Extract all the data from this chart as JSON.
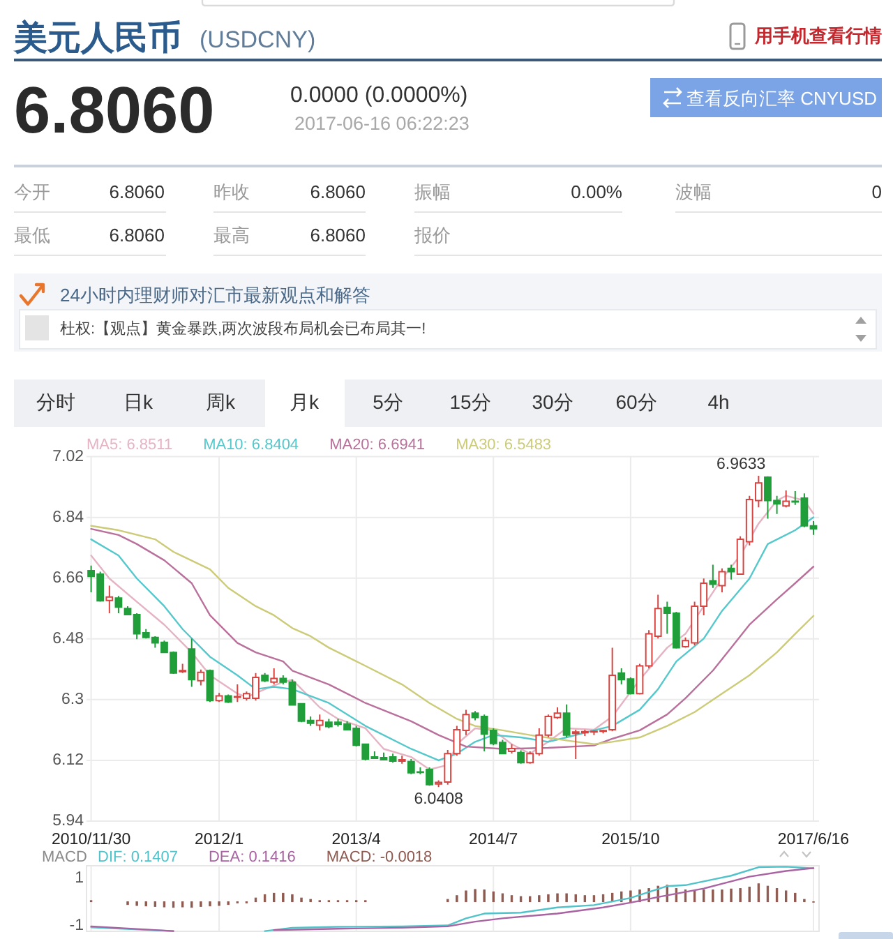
{
  "chart_data": [
    {
      "type": "other",
      "title": "美元人民币",
      "subtitle": "(USDCNY)",
      "annotations": [
        "用手机查看行情",
        "6.8060",
        "0.0000 (0.0000%)",
        "2017-06-16 06:22:23",
        "查看反向汇率 CNYUSD",
        "今开",
        "6.8060",
        "昨收",
        "6.8060",
        "振幅",
        "0.00%",
        "波幅",
        "0",
        "最低",
        "6.8060",
        "最高",
        "6.8060",
        "报价",
        "24小时内理财师对汇市最新观点和解答",
        "杜权:【观点】黄金暴跌,两次波段布局机会已布局其一!",
        "分时",
        "日k",
        "周k",
        "月k",
        "5分",
        "15分",
        "30分",
        "60分",
        "4h"
      ]
    },
    {
      "type": "candlestick",
      "x": [
        "2010-11",
        "2010-12",
        "2011-01",
        "2011-02",
        "2011-03",
        "2011-04",
        "2011-05",
        "2011-06",
        "2011-07",
        "2011-08",
        "2011-09",
        "2011-10",
        "2011-11",
        "2011-12",
        "2012-01",
        "2012-02",
        "2012-03",
        "2012-04",
        "2012-05",
        "2012-06",
        "2012-07",
        "2012-08",
        "2012-09",
        "2012-10",
        "2012-11",
        "2012-12",
        "2013-01",
        "2013-02",
        "2013-03",
        "2013-04",
        "2013-05",
        "2013-06",
        "2013-07",
        "2013-08",
        "2013-09",
        "2013-10",
        "2013-11",
        "2013-12",
        "2014-01",
        "2014-02",
        "2014-03",
        "2014-04",
        "2014-05",
        "2014-06",
        "2014-07",
        "2014-08",
        "2014-09",
        "2014-10",
        "2014-11",
        "2014-12",
        "2015-01",
        "2015-02",
        "2015-03",
        "2015-04",
        "2015-05",
        "2015-06",
        "2015-07",
        "2015-08",
        "2015-09",
        "2015-10",
        "2015-11",
        "2015-12",
        "2016-01",
        "2016-02",
        "2016-03",
        "2016-04",
        "2016-05",
        "2016-06",
        "2016-07",
        "2016-08",
        "2016-09",
        "2016-10",
        "2016-11",
        "2016-12",
        "2017-01",
        "2017-02",
        "2017-03",
        "2017-04",
        "2017-05",
        "2017-06"
      ],
      "ohlc": [
        [
          6.682,
          6.697,
          6.618,
          6.665
        ],
        [
          6.672,
          6.679,
          6.59,
          6.593
        ],
        [
          6.594,
          6.638,
          6.556,
          6.604
        ],
        [
          6.601,
          6.607,
          6.556,
          6.574
        ],
        [
          6.57,
          6.577,
          6.55,
          6.552
        ],
        [
          6.552,
          6.556,
          6.479,
          6.495
        ],
        [
          6.498,
          6.509,
          6.481,
          6.484
        ],
        [
          6.484,
          6.488,
          6.454,
          6.468
        ],
        [
          6.47,
          6.475,
          6.438,
          6.44
        ],
        [
          6.44,
          6.443,
          6.376,
          6.379
        ],
        [
          6.383,
          6.406,
          6.379,
          6.386
        ],
        [
          6.45,
          6.481,
          6.338,
          6.359
        ],
        [
          6.356,
          6.389,
          6.342,
          6.381
        ],
        [
          6.386,
          6.389,
          6.293,
          6.297
        ],
        [
          6.297,
          6.32,
          6.293,
          6.311
        ],
        [
          6.311,
          6.315,
          6.29,
          6.293
        ],
        [
          6.307,
          6.345,
          6.293,
          6.309
        ],
        [
          6.304,
          6.324,
          6.297,
          6.318
        ],
        [
          6.304,
          6.379,
          6.297,
          6.366
        ],
        [
          6.372,
          6.379,
          6.352,
          6.356
        ],
        [
          6.352,
          6.393,
          6.345,
          6.363
        ],
        [
          6.363,
          6.372,
          6.345,
          6.352
        ],
        [
          6.352,
          6.359,
          6.284,
          6.284
        ],
        [
          6.288,
          6.29,
          6.233,
          6.236
        ],
        [
          6.238,
          6.25,
          6.222,
          6.23
        ],
        [
          6.224,
          6.256,
          6.209,
          6.238
        ],
        [
          6.233,
          6.243,
          6.215,
          6.22
        ],
        [
          6.233,
          6.243,
          6.22,
          6.227
        ],
        [
          6.228,
          6.236,
          6.209,
          6.211
        ],
        [
          6.215,
          6.222,
          6.161,
          6.165
        ],
        [
          6.168,
          6.17,
          6.12,
          6.124
        ],
        [
          6.13,
          6.147,
          6.124,
          6.126
        ],
        [
          6.128,
          6.143,
          6.12,
          6.122
        ],
        [
          6.13,
          6.14,
          6.113,
          6.118
        ],
        [
          6.118,
          6.134,
          6.11,
          6.122
        ],
        [
          6.116,
          6.124,
          6.079,
          6.083
        ],
        [
          6.086,
          6.099,
          6.079,
          6.084
        ],
        [
          6.093,
          6.099,
          6.045,
          6.048
        ],
        [
          6.05,
          6.061,
          6.0408,
          6.055
        ],
        [
          6.056,
          6.151,
          6.048,
          6.14
        ],
        [
          6.14,
          6.222,
          6.134,
          6.211
        ],
        [
          6.209,
          6.27,
          6.195,
          6.256
        ],
        [
          6.26,
          6.266,
          6.239,
          6.247
        ],
        [
          6.25,
          6.256,
          6.147,
          6.198
        ],
        [
          6.209,
          6.215,
          6.165,
          6.17
        ],
        [
          6.173,
          6.181,
          6.138,
          6.14
        ],
        [
          6.147,
          6.168,
          6.14,
          6.155
        ],
        [
          6.143,
          6.15,
          6.11,
          6.113
        ],
        [
          6.113,
          6.147,
          6.11,
          6.14
        ],
        [
          6.14,
          6.215,
          6.134,
          6.195
        ],
        [
          6.195,
          6.256,
          6.188,
          6.25
        ],
        [
          6.247,
          6.277,
          6.243,
          6.26
        ],
        [
          6.26,
          6.286,
          6.188,
          6.195
        ],
        [
          6.2,
          6.211,
          6.124,
          6.204
        ],
        [
          6.202,
          6.211,
          6.192,
          6.205
        ],
        [
          6.204,
          6.209,
          6.195,
          6.206
        ],
        [
          6.206,
          6.211,
          6.2,
          6.208
        ],
        [
          6.211,
          6.454,
          6.206,
          6.372
        ],
        [
          6.379,
          6.393,
          6.345,
          6.359
        ],
        [
          6.361,
          6.366,
          6.315,
          6.318
        ],
        [
          6.318,
          6.406,
          6.315,
          6.4
        ],
        [
          6.4,
          6.506,
          6.393,
          6.495
        ],
        [
          6.488,
          6.611,
          6.481,
          6.57
        ],
        [
          6.573,
          6.59,
          6.495,
          6.556
        ],
        [
          6.556,
          6.56,
          6.451,
          6.454
        ],
        [
          6.457,
          6.484,
          6.454,
          6.475
        ],
        [
          6.468,
          6.59,
          6.461,
          6.577
        ],
        [
          6.577,
          6.659,
          6.55,
          6.645
        ],
        [
          6.652,
          6.7,
          6.631,
          6.642
        ],
        [
          6.638,
          6.689,
          6.618,
          6.679
        ],
        [
          6.689,
          6.7,
          6.656,
          6.679
        ],
        [
          6.672,
          6.784,
          6.67,
          6.775
        ],
        [
          6.768,
          6.904,
          6.757,
          6.893
        ],
        [
          6.89,
          6.9633,
          6.87,
          6.942
        ],
        [
          6.959,
          6.962,
          6.836,
          6.89
        ],
        [
          6.89,
          6.904,
          6.85,
          6.88
        ],
        [
          6.874,
          6.92,
          6.87,
          6.888
        ],
        [
          6.888,
          6.918,
          6.877,
          6.886
        ],
        [
          6.897,
          6.911,
          6.811,
          6.815
        ],
        [
          6.815,
          6.829,
          6.788,
          6.806
        ]
      ],
      "colors": [
        "#1f9e3a",
        "#1f9e3a",
        "#d64541",
        "#1f9e3a",
        "#1f9e3a",
        "#1f9e3a",
        "#1f9e3a",
        "#1f9e3a",
        "#1f9e3a",
        "#1f9e3a",
        "#d64541",
        "#1f9e3a",
        "#d64541",
        "#1f9e3a",
        "#d64541",
        "#1f9e3a",
        "#d64541",
        "#d64541",
        "#d64541",
        "#1f9e3a",
        "#d64541",
        "#1f9e3a",
        "#1f9e3a",
        "#1f9e3a",
        "#1f9e3a",
        "#d64541",
        "#1f9e3a",
        "#1f9e3a",
        "#1f9e3a",
        "#1f9e3a",
        "#1f9e3a",
        "#1f9e3a",
        "#1f9e3a",
        "#1f9e3a",
        "#d64541",
        "#1f9e3a",
        "#1f9e3a",
        "#1f9e3a",
        "#d64541",
        "#d64541",
        "#d64541",
        "#d64541",
        "#1f9e3a",
        "#1f9e3a",
        "#1f9e3a",
        "#1f9e3a",
        "#d64541",
        "#1f9e3a",
        "#d64541",
        "#d64541",
        "#d64541",
        "#d64541",
        "#1f9e3a",
        "#d64541",
        "#d64541",
        "#d64541",
        "#d64541",
        "#d64541",
        "#1f9e3a",
        "#1f9e3a",
        "#d64541",
        "#d64541",
        "#d64541",
        "#1f9e3a",
        "#1f9e3a",
        "#d64541",
        "#d64541",
        "#d64541",
        "#1f9e3a",
        "#d64541",
        "#1f9e3a",
        "#d64541",
        "#d64541",
        "#d64541",
        "#1f9e3a",
        "#1f9e3a",
        "#d64541",
        "#1f9e3a",
        "#1f9e3a",
        "#1f9e3a"
      ],
      "series": [
        {
          "name": "MA5: 6.8511",
          "type": "line",
          "color": "#e6b3c3",
          "x": [
            "2010-11",
            "2011-01",
            "2011-04",
            "2011-07",
            "2011-10",
            "2011-12",
            "2012-03",
            "2012-04",
            "2012-06",
            "2012-08",
            "2012-09",
            "2012-12",
            "2013-02",
            "2013-05",
            "2013-07",
            "2013-10",
            "2013-12",
            "2014-02",
            "2014-03",
            "2014-05",
            "2014-07",
            "2014-09",
            "2014-11",
            "2015-01",
            "2015-03",
            "2015-06",
            "2015-08",
            "2015-11",
            "2016-02",
            "2016-04",
            "2016-06",
            "2016-08",
            "2016-10",
            "2016-12",
            "2017-02",
            "2017-03",
            "2017-05",
            "2017-06"
          ],
          "values": [
            6.727,
            6.659,
            6.59,
            6.522,
            6.44,
            6.372,
            6.318,
            6.307,
            6.331,
            6.352,
            6.359,
            6.277,
            6.243,
            6.215,
            6.154,
            6.13,
            6.093,
            6.106,
            6.168,
            6.215,
            6.209,
            6.168,
            6.14,
            6.175,
            6.215,
            6.211,
            6.25,
            6.359,
            6.454,
            6.495,
            6.577,
            6.659,
            6.727,
            6.822,
            6.89,
            6.904,
            6.89,
            6.8511
          ]
        },
        {
          "name": "MA10: 6.8404",
          "type": "line",
          "color": "#55c8cc",
          "x": [
            "2010-11",
            "2011-02",
            "2011-04",
            "2011-07",
            "2011-09",
            "2011-12",
            "2012-03",
            "2012-05",
            "2012-07",
            "2012-09",
            "2013-01",
            "2013-05",
            "2013-10",
            "2014-01",
            "2014-03",
            "2014-05",
            "2014-07",
            "2014-10",
            "2015-01",
            "2015-03",
            "2015-06",
            "2015-08",
            "2015-11",
            "2016-01",
            "2016-03",
            "2016-06",
            "2016-08",
            "2016-11",
            "2017-01",
            "2017-04",
            "2017-06"
          ],
          "values": [
            6.775,
            6.727,
            6.659,
            6.577,
            6.509,
            6.427,
            6.372,
            6.331,
            6.338,
            6.331,
            6.29,
            6.222,
            6.154,
            6.12,
            6.14,
            6.175,
            6.195,
            6.188,
            6.175,
            6.188,
            6.209,
            6.222,
            6.27,
            6.331,
            6.413,
            6.481,
            6.563,
            6.659,
            6.761,
            6.802,
            6.8404
          ]
        },
        {
          "name": "MA20: 6.6941",
          "type": "line",
          "color": "#b9709b",
          "x": [
            "2010-11",
            "2011-02",
            "2011-04",
            "2011-07",
            "2011-10",
            "2011-12",
            "2012-03",
            "2012-05",
            "2012-08",
            "2012-09",
            "2013-01",
            "2013-05",
            "2013-10",
            "2014-01",
            "2014-04",
            "2014-08",
            "2015-01",
            "2015-06",
            "2015-08",
            "2015-11",
            "2016-02",
            "2016-04",
            "2016-07",
            "2016-09",
            "2016-11",
            "2017-02",
            "2017-04",
            "2017-06"
          ],
          "values": [
            6.806,
            6.788,
            6.761,
            6.713,
            6.645,
            6.55,
            6.468,
            6.44,
            6.413,
            6.386,
            6.345,
            6.29,
            6.236,
            6.195,
            6.161,
            6.154,
            6.157,
            6.164,
            6.184,
            6.209,
            6.256,
            6.304,
            6.386,
            6.454,
            6.522,
            6.597,
            6.645,
            6.6941
          ]
        },
        {
          "name": "MA30: 6.5483",
          "type": "line",
          "color": "#cccb78",
          "x": [
            "2010-11",
            "2011-02",
            "2011-06",
            "2011-08",
            "2011-12",
            "2012-02",
            "2012-05",
            "2012-07",
            "2012-09",
            "2012-11",
            "2013-01",
            "2013-05",
            "2013-09",
            "2013-12",
            "2014-03",
            "2014-05",
            "2014-08",
            "2014-11",
            "2015-03",
            "2015-06",
            "2015-08",
            "2015-11",
            "2016-02",
            "2016-05",
            "2016-08",
            "2016-11",
            "2017-02",
            "2017-04",
            "2017-06"
          ],
          "values": [
            6.815,
            6.802,
            6.775,
            6.738,
            6.686,
            6.631,
            6.577,
            6.55,
            6.512,
            6.488,
            6.454,
            6.4,
            6.345,
            6.29,
            6.243,
            6.222,
            6.209,
            6.195,
            6.179,
            6.168,
            6.175,
            6.188,
            6.222,
            6.263,
            6.318,
            6.372,
            6.44,
            6.495,
            6.5483
          ]
        }
      ],
      "xlim": [
        "2010-11",
        "2017-06"
      ],
      "xticks": [
        {
          "value": "2010-11",
          "label": "2010/11/30"
        },
        {
          "value": "2012-01",
          "label": "2012/1"
        },
        {
          "value": "2013-04",
          "label": "2013/4"
        },
        {
          "value": "2014-07",
          "label": "2014/7"
        },
        {
          "value": "2015-10",
          "label": "2015/10"
        },
        {
          "value": "2017-06",
          "label": "2017/6/16"
        }
      ],
      "ylim": [
        5.94,
        7.02
      ],
      "yticks": [
        7.02,
        6.84,
        6.66,
        6.48,
        6.3,
        6.12,
        5.94
      ],
      "grid": true,
      "legend": "top",
      "annotations": [
        {
          "text": "6.9633",
          "x": "2016-12",
          "y": 6.9633
        },
        {
          "text": "6.0408",
          "x": "2014-01",
          "y": 6.0408
        }
      ]
    },
    {
      "type": "bar",
      "title": "MACD",
      "x": [
        "2010-11",
        "2010-12",
        "2011-01",
        "2011-02",
        "2011-03",
        "2011-04",
        "2011-05",
        "2011-06",
        "2011-07",
        "2011-08",
        "2011-09",
        "2011-10",
        "2011-11",
        "2011-12",
        "2012-01",
        "2012-02",
        "2012-03",
        "2012-04",
        "2012-05",
        "2012-06",
        "2012-07",
        "2012-08",
        "2012-09",
        "2012-10",
        "2012-11",
        "2012-12",
        "2013-01",
        "2013-02",
        "2013-03",
        "2013-04",
        "2013-05",
        "2013-06",
        "2013-07",
        "2013-08",
        "2013-09",
        "2013-10",
        "2013-11",
        "2013-12",
        "2014-01",
        "2014-02",
        "2014-03",
        "2014-04",
        "2014-05",
        "2014-06",
        "2014-07",
        "2014-08",
        "2014-09",
        "2014-10",
        "2014-11",
        "2014-12",
        "2015-01",
        "2015-02",
        "2015-03",
        "2015-04",
        "2015-05",
        "2015-06",
        "2015-07",
        "2015-08",
        "2015-09",
        "2015-10",
        "2015-11",
        "2015-12",
        "2016-01",
        "2016-02",
        "2016-03",
        "2016-04",
        "2016-05",
        "2016-06",
        "2016-07",
        "2016-08",
        "2016-09",
        "2016-10",
        "2016-11",
        "2016-12",
        "2017-01",
        "2017-02",
        "2017-03",
        "2017-04",
        "2017-05",
        "2017-06"
      ],
      "series": [
        {
          "name": "DIF: 0.1407",
          "type": "line",
          "color": "#4fc3c9",
          "x": [
            "2010-11",
            "2011-08",
            "2012-01",
            "2012-06",
            "2012-09",
            "2013-02",
            "2013-09",
            "2014-02",
            "2014-04",
            "2014-06",
            "2014-10",
            "2015-02",
            "2015-06",
            "2015-10",
            "2016-02",
            "2016-04",
            "2016-06",
            "2016-09",
            "2016-12",
            "2017-03",
            "2017-06"
          ],
          "values": [
            -1.08,
            -1.24,
            null,
            -1.24,
            -1.1,
            -1.06,
            -1.04,
            -1.0,
            -0.7,
            -0.5,
            -0.46,
            -0.24,
            -0.14,
            0.16,
            0.66,
            0.7,
            0.86,
            1.1,
            1.46,
            1.48,
            1.41
          ]
        },
        {
          "name": "DEA: 0.1416",
          "type": "line",
          "color": "#a963a3",
          "x": [
            "2010-11",
            "2011-08",
            "2012-01",
            "2012-07",
            "2013-02",
            "2013-09",
            "2014-02",
            "2014-05",
            "2014-08",
            "2015-02",
            "2015-07",
            "2015-10",
            "2016-01",
            "2016-06",
            "2016-11",
            "2017-03",
            "2017-06"
          ],
          "values": [
            -1.04,
            -1.24,
            null,
            -1.2,
            -1.14,
            -1.1,
            -1.04,
            -0.84,
            -0.7,
            -0.5,
            -0.24,
            -0.04,
            0.2,
            0.56,
            1.06,
            1.3,
            1.42
          ]
        },
        {
          "name": "MACD: -0.0018",
          "color": "#8e5a50",
          "values": [
            0.05,
            null,
            null,
            null,
            -0.12,
            -0.16,
            -0.18,
            -0.2,
            -0.22,
            -0.24,
            -0.22,
            -0.24,
            -0.2,
            -0.18,
            -0.16,
            -0.12,
            -0.05,
            -0.05,
            0.16,
            0.3,
            0.36,
            0.36,
            0.3,
            0.16,
            0.1,
            0.05,
            0.05,
            0.05,
            0.05,
            0.05,
            0.05,
            null,
            null,
            null,
            null,
            null,
            null,
            null,
            null,
            0.1,
            0.26,
            0.46,
            0.52,
            0.5,
            0.42,
            0.34,
            0.26,
            0.22,
            0.22,
            0.26,
            0.3,
            0.34,
            0.34,
            0.3,
            0.26,
            0.26,
            0.3,
            0.36,
            0.42,
            0.46,
            0.5,
            0.56,
            0.66,
            0.7,
            0.56,
            0.5,
            0.46,
            0.5,
            0.5,
            0.5,
            0.54,
            0.56,
            0.62,
            0.76,
            0.66,
            0.56,
            0.46,
            0.36,
            0.1,
            -0.02
          ]
        }
      ],
      "xlim": [
        "2010-11",
        "2017-06"
      ],
      "xticks": [
        {
          "value": "2010-11",
          "label": null
        },
        {
          "value": "2012-01",
          "label": null
        },
        {
          "value": "2013-04",
          "label": null
        },
        {
          "value": "2014-07",
          "label": null
        },
        {
          "value": "2015-10",
          "label": null
        },
        {
          "value": "2017-06",
          "label": null
        }
      ],
      "ylim": [
        -1.25,
        1.52
      ],
      "yticks": [
        1,
        -1
      ],
      "grid": "x",
      "legend": "top",
      "tick_labels": "y"
    }
  ]
}
